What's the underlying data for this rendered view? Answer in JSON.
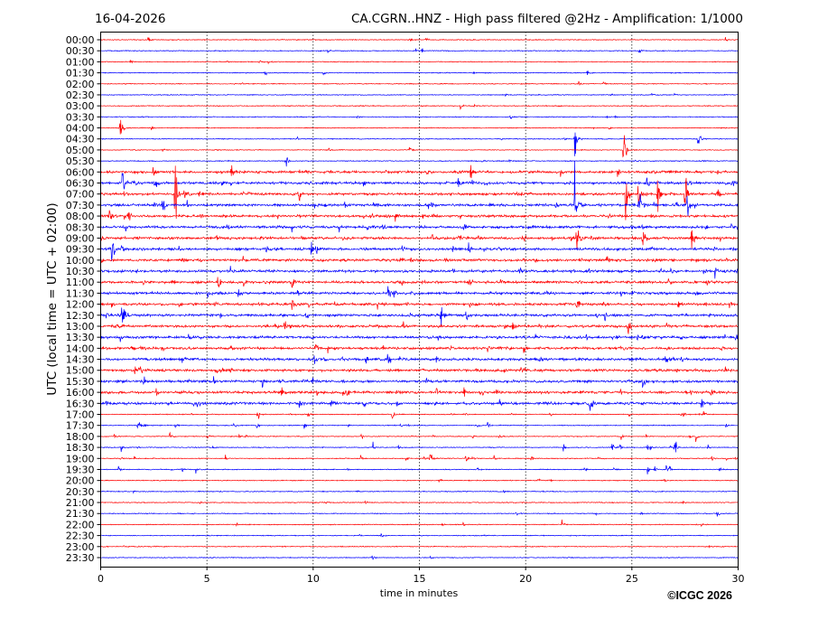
{
  "chart_data": {
    "type": "line",
    "title_left": "16-04-2026",
    "title": "CA.CGRN..HNZ - High pass filtered @2Hz - Amplification: 1/1000",
    "xlabel": "time in minutes",
    "ylabel": "UTC (local time = UTC + 02:00)",
    "xlim": [
      0,
      30
    ],
    "x_ticks": [
      "0",
      "5",
      "10",
      "15",
      "20",
      "25",
      "30"
    ],
    "x_tick_values": [
      0,
      5,
      10,
      15,
      20,
      25,
      30
    ],
    "grid": "vertical dotted at x ticks",
    "row_labels": [
      "00:00",
      "00:30",
      "01:00",
      "01:30",
      "02:00",
      "02:30",
      "03:00",
      "03:30",
      "04:00",
      "04:30",
      "05:00",
      "05:30",
      "06:00",
      "06:30",
      "07:00",
      "07:30",
      "08:00",
      "08:30",
      "09:00",
      "09:30",
      "10:00",
      "10:30",
      "11:00",
      "11:30",
      "12:00",
      "12:30",
      "13:00",
      "13:30",
      "14:00",
      "14:30",
      "15:00",
      "15:30",
      "16:00",
      "16:30",
      "17:00",
      "17:30",
      "18:00",
      "18:30",
      "19:00",
      "19:30",
      "20:00",
      "20:30",
      "21:00",
      "21:30",
      "22:00",
      "22:30",
      "23:00",
      "23:30"
    ],
    "series_colors": [
      "#ff0000",
      "#0000ff"
    ],
    "events": [
      {
        "row": 8,
        "t": 0.9,
        "amp": 3
      },
      {
        "row": 9,
        "t": 22.3,
        "amp": 2.5
      },
      {
        "row": 9,
        "t": 28.1,
        "amp": 2
      },
      {
        "row": 10,
        "t": 24.6,
        "amp": 4
      },
      {
        "row": 11,
        "t": 8.7,
        "amp": 1.5
      },
      {
        "row": 12,
        "t": 17.4,
        "amp": 1.5
      },
      {
        "row": 13,
        "t": 1.0,
        "amp": 5
      },
      {
        "row": 13,
        "t": 2.5,
        "amp": 1
      },
      {
        "row": 13,
        "t": 16.8,
        "amp": 0.8
      },
      {
        "row": 14,
        "t": 3.5,
        "amp": 6
      },
      {
        "row": 14,
        "t": 24.7,
        "amp": 5
      },
      {
        "row": 14,
        "t": 25.3,
        "amp": 6
      },
      {
        "row": 14,
        "t": 26.2,
        "amp": 5
      },
      {
        "row": 14,
        "t": 27.5,
        "amp": 4
      },
      {
        "row": 14,
        "t": 9.3,
        "amp": 1.5
      },
      {
        "row": 15,
        "t": 2.9,
        "amp": 1.5
      },
      {
        "row": 15,
        "t": 22.3,
        "amp": 5
      },
      {
        "row": 15,
        "t": 25.3,
        "amp": 4
      },
      {
        "row": 15,
        "t": 27.6,
        "amp": 3
      },
      {
        "row": 16,
        "t": 0.4,
        "amp": 1
      },
      {
        "row": 16,
        "t": 1.3,
        "amp": 1
      },
      {
        "row": 17,
        "t": 17.1,
        "amp": 1
      },
      {
        "row": 18,
        "t": 22.4,
        "amp": 3
      },
      {
        "row": 18,
        "t": 25.5,
        "amp": 3
      },
      {
        "row": 18,
        "t": 27.8,
        "amp": 2
      },
      {
        "row": 19,
        "t": 0.5,
        "amp": 3
      },
      {
        "row": 19,
        "t": 9.9,
        "amp": 1
      },
      {
        "row": 19,
        "t": 17.3,
        "amp": 1
      },
      {
        "row": 20,
        "t": 23.8,
        "amp": 1
      },
      {
        "row": 21,
        "t": 19.7,
        "amp": 1
      },
      {
        "row": 22,
        "t": 5.5,
        "amp": 1.5
      },
      {
        "row": 22,
        "t": 9,
        "amp": 1
      },
      {
        "row": 22,
        "t": 17.3,
        "amp": 0.8
      },
      {
        "row": 23,
        "t": 5.0,
        "amp": 1
      },
      {
        "row": 23,
        "t": 13.5,
        "amp": 1
      },
      {
        "row": 24,
        "t": 9,
        "amp": 1
      },
      {
        "row": 24,
        "t": 22.4,
        "amp": 1
      },
      {
        "row": 25,
        "t": 1,
        "amp": 4
      },
      {
        "row": 25,
        "t": 16,
        "amp": 1.5
      },
      {
        "row": 26,
        "t": 24.8,
        "amp": 1.5
      },
      {
        "row": 27,
        "t": 29.9,
        "amp": 1
      },
      {
        "row": 28,
        "t": 10.1,
        "amp": 1
      },
      {
        "row": 28,
        "t": 19.9,
        "amp": 1
      },
      {
        "row": 29,
        "t": 13.5,
        "amp": 1.5
      },
      {
        "row": 29,
        "t": 26.6,
        "amp": 1
      },
      {
        "row": 30,
        "t": 1.8,
        "amp": 1
      },
      {
        "row": 31,
        "t": 25.5,
        "amp": 1
      },
      {
        "row": 31,
        "t": 7.6,
        "amp": 1
      },
      {
        "row": 32,
        "t": 8.5,
        "amp": 0.8
      },
      {
        "row": 33,
        "t": 23.0,
        "amp": 2
      },
      {
        "row": 34,
        "t": 13.7,
        "amp": 1
      },
      {
        "row": 37,
        "t": 27.0,
        "amp": 1.5
      },
      {
        "row": 38,
        "t": 15.5,
        "amp": 1.5
      },
      {
        "row": 43,
        "t": 29,
        "amp": 0.5
      },
      {
        "row": 44,
        "t": 21.7,
        "amp": 0.7
      }
    ]
  },
  "footer": {
    "copyright": "©ICGC 2026"
  }
}
